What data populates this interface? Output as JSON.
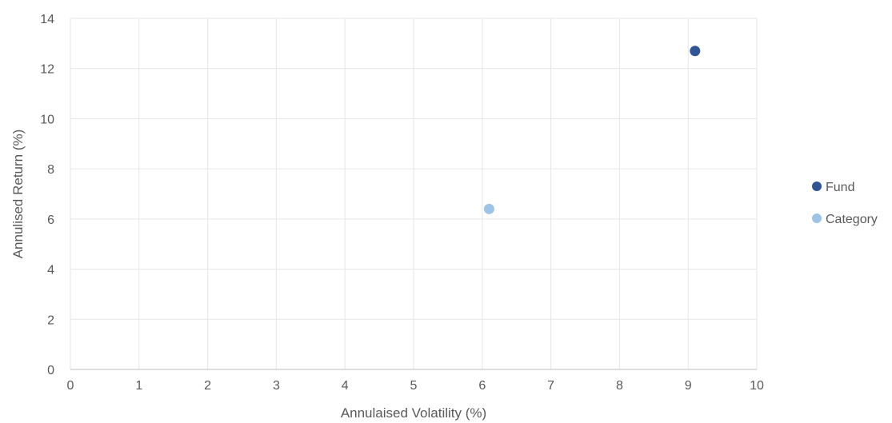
{
  "chart_data": {
    "type": "scatter",
    "title": "",
    "xlabel": "Annulaised Volatility (%)",
    "ylabel": "Annulised Return (%)",
    "xlim": [
      0,
      10
    ],
    "ylim": [
      0,
      14
    ],
    "x_ticks": [
      "0",
      "1",
      "2",
      "3",
      "4",
      "5",
      "6",
      "7",
      "8",
      "9",
      "10"
    ],
    "y_ticks": [
      "0",
      "2",
      "4",
      "6",
      "8",
      "10",
      "12",
      "14"
    ],
    "grid": true,
    "legend_position": "right",
    "series": [
      {
        "name": "Fund",
        "color": "#2f5597",
        "points": [
          {
            "x": 9.1,
            "y": 12.7
          }
        ]
      },
      {
        "name": "Category",
        "color": "#9dc3e6",
        "points": [
          {
            "x": 6.1,
            "y": 6.4
          }
        ]
      }
    ]
  }
}
